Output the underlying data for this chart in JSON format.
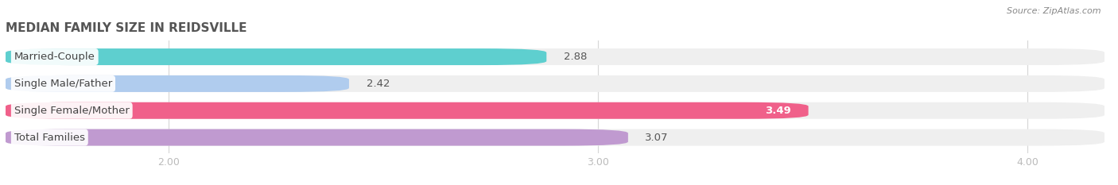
{
  "title": "MEDIAN FAMILY SIZE IN REIDSVILLE",
  "source": "Source: ZipAtlas.com",
  "categories": [
    "Married-Couple",
    "Single Male/Father",
    "Single Female/Mother",
    "Total Families"
  ],
  "values": [
    2.88,
    2.42,
    3.49,
    3.07
  ],
  "bar_colors": [
    "#5ecfcf",
    "#b0ccee",
    "#f0608a",
    "#c09ad0"
  ],
  "bar_bg_color": "#efefef",
  "xlim_left": 1.62,
  "xlim_right": 4.18,
  "xticks": [
    2.0,
    3.0,
    4.0
  ],
  "xtick_labels": [
    "2.00",
    "3.00",
    "4.00"
  ],
  "bar_height": 0.62,
  "label_fontsize": 9.5,
  "value_fontsize": 9.5,
  "title_fontsize": 11,
  "bg_color": "#ffffff",
  "grid_color": "#d8d8d8",
  "value_inside_color": "#ffffff",
  "value_outside_color": "#555555",
  "label_text_color": "#444444"
}
